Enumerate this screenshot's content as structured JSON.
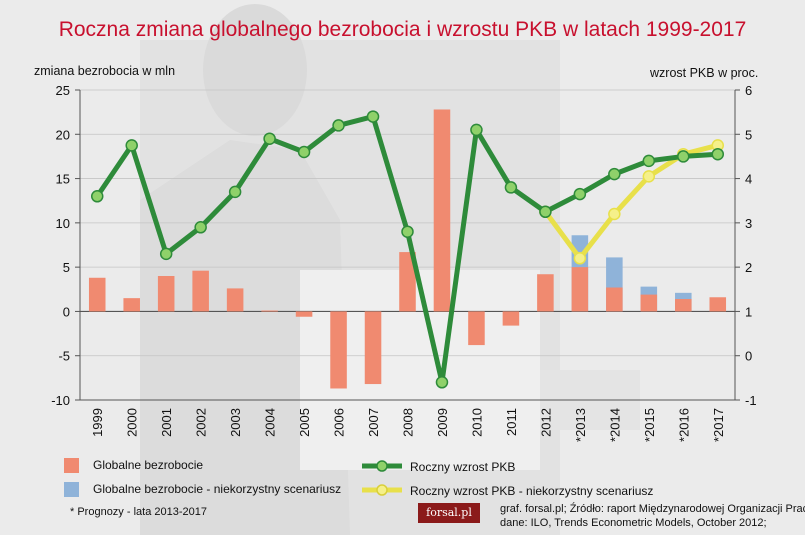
{
  "chart_data": {
    "type": "bar",
    "title": "Roczna zmiana globalnego bezrobocia i wzrostu PKB w latach 1999-2017",
    "ylabel_left": "zmiana bezrobocia w mln",
    "ylabel_right": "wzrost PKB w proc.",
    "ylim_left": [
      -10,
      25
    ],
    "yticks_left": [
      "25",
      "20",
      "15",
      "10",
      "5",
      "0",
      "-5",
      "-10"
    ],
    "ylim_right": [
      -1,
      6
    ],
    "yticks_right": [
      "6",
      "5",
      "4",
      "3",
      "2",
      "1",
      "0",
      "-1"
    ],
    "categories": [
      "1999",
      "2000",
      "2001",
      "2002",
      "2003",
      "2004",
      "2005",
      "2006",
      "2007",
      "2008",
      "2009",
      "2010",
      "2011",
      "2012",
      "*2013",
      "*2014",
      "*2015",
      "*2016",
      "*2017"
    ],
    "series": [
      {
        "name": "Globalne bezrobocie",
        "type": "bar",
        "axis": "left",
        "color": "#f08a70",
        "values": [
          3.8,
          1.5,
          4.0,
          4.6,
          2.6,
          0.1,
          -0.6,
          -8.7,
          -8.2,
          6.7,
          22.8,
          -3.8,
          -1.6,
          4.2,
          5.0,
          2.7,
          1.9,
          1.4,
          1.6
        ]
      },
      {
        "name": "Globalne bezrobocie - niekorzystny scenariusz",
        "type": "bar",
        "axis": "left",
        "color": "#8fb3d9",
        "values": [
          null,
          null,
          null,
          null,
          null,
          null,
          null,
          null,
          null,
          null,
          null,
          null,
          null,
          null,
          8.6,
          6.1,
          2.8,
          2.1,
          null
        ]
      },
      {
        "name": "Roczny wzrost PKB",
        "type": "line",
        "axis": "right",
        "color": "#2e8b3a",
        "values": [
          3.6,
          4.75,
          2.3,
          2.9,
          3.7,
          4.9,
          4.6,
          5.2,
          5.4,
          2.8,
          -0.6,
          5.1,
          3.8,
          3.25,
          3.65,
          4.1,
          4.4,
          4.5,
          4.55
        ]
      },
      {
        "name": "Roczny wzrost PKB - niekorzystny scenariusz",
        "type": "line",
        "axis": "right",
        "color": "#e8e04a",
        "values": [
          null,
          null,
          null,
          null,
          null,
          null,
          null,
          null,
          null,
          null,
          null,
          null,
          null,
          3.25,
          2.2,
          3.2,
          4.05,
          4.55,
          4.75
        ]
      }
    ]
  },
  "legend": {
    "unemployment": "Globalne bezrobocie",
    "unemployment_adverse": "Globalne bezrobocie - niekorzystny scenariusz",
    "gdp": "Roczny wzrost PKB",
    "gdp_adverse": "Roczny wzrost PKB - niekorzystny scenariusz"
  },
  "footnote": "* Prognozy - lata 2013-2017",
  "logo_text": "forsal.pl",
  "source_line1": "graf. forsal.pl; Źródło: raport Międzynarodowej Organizacji Pracy",
  "source_line2": "dane: ILO, Trends Econometric Models, October 2012;"
}
